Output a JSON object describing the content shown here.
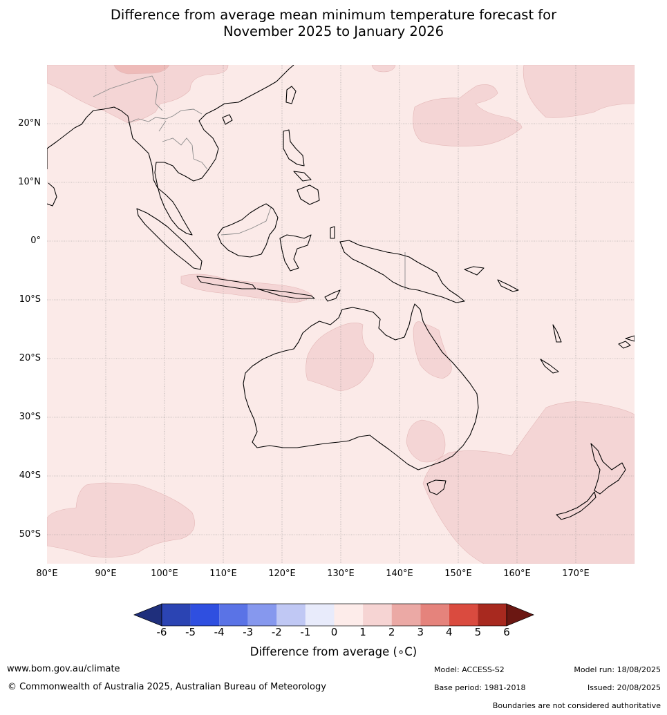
{
  "title_line1": "Difference from average mean minimum temperature forecast for",
  "title_line2": "November 2025 to January 2026",
  "lat_labels": [
    "20°N",
    "10°N",
    "0°",
    "10°S",
    "20°S",
    "30°S",
    "40°S",
    "50°S"
  ],
  "lon_labels": [
    "80°E",
    "90°E",
    "100°E",
    "110°E",
    "120°E",
    "130°E",
    "140°E",
    "150°E",
    "160°E",
    "170°E"
  ],
  "colorbar": {
    "label": "Difference from average (∘C)",
    "ticks": [
      "-6",
      "-5",
      "-4",
      "-3",
      "-2",
      "-1",
      "0",
      "1",
      "2",
      "3",
      "4",
      "5",
      "6"
    ],
    "colors": [
      "#1f2f7c",
      "#2b44b3",
      "#2f4fe0",
      "#5a73e6",
      "#8698ee",
      "#c0c8f4",
      "#e8ebfb",
      "#fdecea",
      "#f6d4d3",
      "#eba9a5",
      "#e5837c",
      "#da4b3f",
      "#a8291f",
      "#6b1712"
    ],
    "map_base": "#fbeae8",
    "anomaly_patch": "#f4d5d5"
  },
  "footer": {
    "url": "www.bom.gov.au/climate",
    "copyright": "© Commonwealth of Australia 2025, Australian Bureau of Meteorology",
    "model": "Model: ACCESS-S2",
    "base_period": "Base period: 1981-2018",
    "model_run": "Model run: 18/08/2025",
    "issued": "Issued: 20/08/2025",
    "disclaimer": "Boundaries are not considered authoritative"
  }
}
